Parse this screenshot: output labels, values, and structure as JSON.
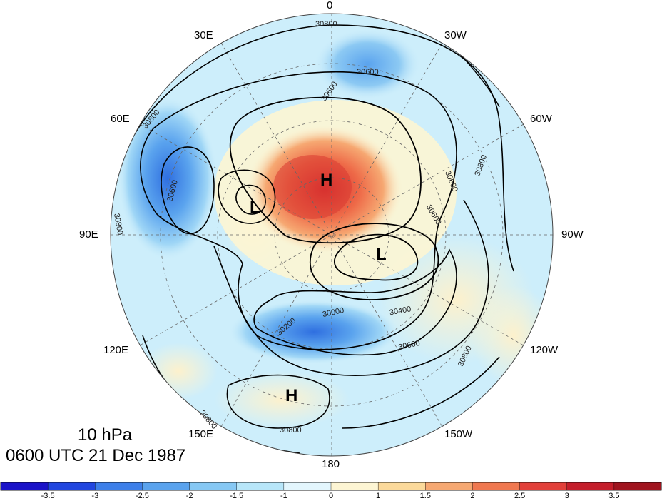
{
  "title": {
    "level": "10 hPa",
    "datetime": "0600 UTC 21 Dec 1987"
  },
  "longitude_labels": [
    {
      "key": "lon-0",
      "text": "0"
    },
    {
      "key": "lon-30w",
      "text": "30W"
    },
    {
      "key": "lon-60w",
      "text": "60W"
    },
    {
      "key": "lon-90w",
      "text": "90W"
    },
    {
      "key": "lon-120w",
      "text": "120W"
    },
    {
      "key": "lon-150w",
      "text": "150W"
    },
    {
      "key": "lon-180",
      "text": "180"
    },
    {
      "key": "lon-150e",
      "text": "150E"
    },
    {
      "key": "lon-120e",
      "text": "120E"
    },
    {
      "key": "lon-90e",
      "text": "90E"
    },
    {
      "key": "lon-60e",
      "text": "60E"
    },
    {
      "key": "lon-30e",
      "text": "30E"
    }
  ],
  "colorbar": {
    "ticks": [
      "-3.5",
      "-3",
      "-2.5",
      "-2",
      "-1.5",
      "-1",
      "0",
      "1",
      "1.5",
      "2",
      "2.5",
      "3",
      "3.5"
    ],
    "colors": [
      "#1a13c8",
      "#2146df",
      "#3d7fe9",
      "#5aa3ee",
      "#86c8f4",
      "#b7e6f9",
      "#e3f6fd",
      "#fdf5d3",
      "#fbd99a",
      "#f6a872",
      "#f07850",
      "#e2403a",
      "#c41e2b",
      "#a0141f"
    ]
  },
  "contour_labels": [
    "30800",
    "30600",
    "30600",
    "30600",
    "30800",
    "30600",
    "30800",
    "30800",
    "30600",
    "30400",
    "30000",
    "30200",
    "30600",
    "30800",
    "30800",
    "30800"
  ],
  "pressure_centers": [
    "H",
    "L",
    "L",
    "H"
  ]
}
